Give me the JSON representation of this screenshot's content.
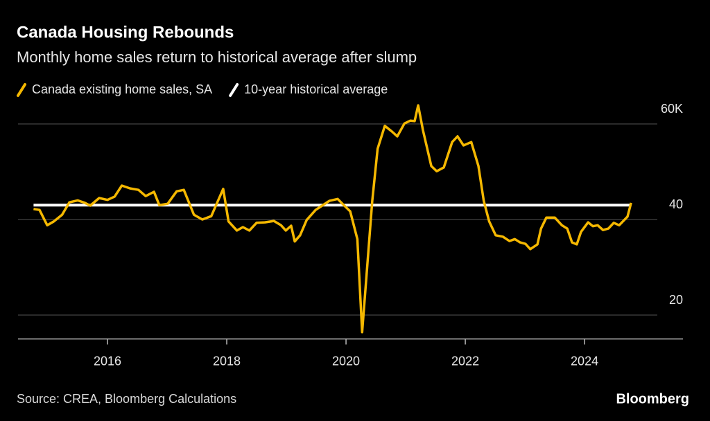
{
  "chart_data": {
    "type": "line",
    "title": "Canada Housing Rebounds",
    "subtitle": "Monthly home sales return to historical average after slump",
    "source": "Source: CREA, Bloomberg Calculations",
    "brand": "Bloomberg",
    "xlim": [
      2014.5,
      2025.65
    ],
    "xticks": [
      2016,
      2018,
      2020,
      2022,
      2024
    ],
    "ylim": [
      15,
      65
    ],
    "yticks": [
      {
        "value": 60,
        "label": "60K"
      },
      40,
      20
    ],
    "grid": true,
    "legend": "top-left",
    "series": [
      {
        "name": "Canada existing home sales, SA",
        "color": "#f5b800",
        "x": [
          2014.76,
          2014.86,
          2014.99,
          2015.1,
          2015.24,
          2015.36,
          2015.5,
          2015.62,
          2015.71,
          2015.86,
          2016.0,
          2016.12,
          2016.24,
          2016.38,
          2016.52,
          2016.64,
          2016.78,
          2016.87,
          2017.01,
          2017.16,
          2017.28,
          2017.45,
          2017.59,
          2017.74,
          2017.94,
          2018.03,
          2018.17,
          2018.27,
          2018.38,
          2018.5,
          2018.64,
          2018.79,
          2018.91,
          2018.99,
          2019.08,
          2019.14,
          2019.23,
          2019.34,
          2019.49,
          2019.6,
          2019.72,
          2019.86,
          2019.98,
          2020.07,
          2020.19,
          2020.27,
          2020.36,
          2020.44,
          2020.53,
          2020.65,
          2020.77,
          2020.86,
          2020.98,
          2021.08,
          2021.15,
          2021.21,
          2021.29,
          2021.43,
          2021.52,
          2021.64,
          2021.78,
          2021.87,
          2021.97,
          2022.1,
          2022.22,
          2022.31,
          2022.4,
          2022.51,
          2022.63,
          2022.74,
          2022.83,
          2022.92,
          2023.01,
          2023.09,
          2023.21,
          2023.27,
          2023.36,
          2023.5,
          2023.62,
          2023.71,
          2023.79,
          2023.87,
          2023.94,
          2024.06,
          2024.14,
          2024.22,
          2024.31,
          2024.4,
          2024.49,
          2024.58,
          2024.72,
          2024.78
        ],
        "values": [
          42.2,
          42.0,
          38.8,
          39.6,
          41.0,
          43.6,
          44.0,
          43.5,
          42.9,
          44.5,
          44.1,
          44.8,
          47.1,
          46.5,
          46.2,
          44.9,
          45.8,
          43.0,
          43.3,
          45.9,
          46.2,
          41.0,
          40.0,
          40.7,
          46.4,
          39.6,
          37.7,
          38.4,
          37.7,
          39.3,
          39.4,
          39.7,
          38.8,
          37.7,
          38.7,
          35.4,
          36.7,
          39.9,
          42.0,
          42.9,
          43.9,
          44.3,
          42.8,
          41.7,
          35.9,
          16.4,
          30.9,
          43.9,
          54.8,
          59.6,
          58.4,
          57.4,
          60.1,
          60.7,
          60.6,
          63.9,
          58.7,
          51.2,
          50.1,
          50.9,
          56.2,
          57.4,
          55.5,
          56.2,
          51.2,
          43.9,
          39.6,
          36.7,
          36.4,
          35.5,
          35.9,
          35.2,
          34.9,
          33.8,
          34.8,
          38.1,
          40.4,
          40.4,
          38.8,
          38.1,
          35.2,
          34.8,
          37.4,
          39.4,
          38.6,
          38.8,
          37.8,
          38.1,
          39.3,
          38.8,
          40.6,
          43.5
        ]
      },
      {
        "name": "10-year historical average",
        "color": "#ffffff",
        "x": [
          2014.76,
          2024.78
        ],
        "values": [
          43.0,
          43.0
        ]
      }
    ]
  }
}
